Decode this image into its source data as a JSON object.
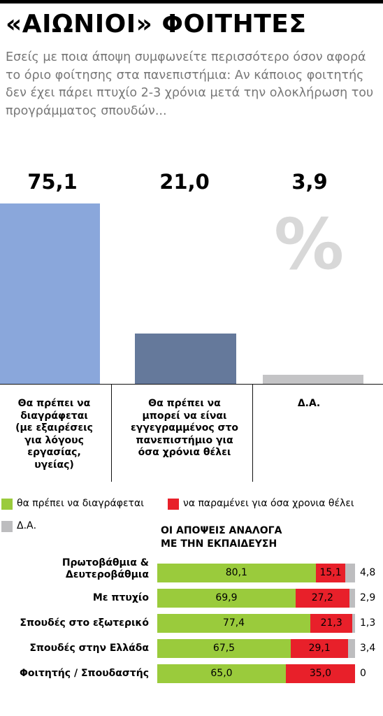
{
  "title": "«ΑΙΩΝΙΟΙ» ΦΟΙΤΗΤΕΣ",
  "subtitle": "Εσείς με ποια άποψη συμφωνείτε περισσότερο όσον αφορά το όριο φοίτησης στα πανεπιστήμια: Αν κάποιος φοιτητής δεν έχει πάρει πτυχίο 2-3 χρόνια μετά την ολοκλήρωση του προγράμματος σπουδών...",
  "percent_mark": "%",
  "colors": {
    "bar1": "#8aa7db",
    "bar2": "#65799b",
    "bar3": "#c4c4c6",
    "green": "#9acb3c",
    "red": "#e8202a",
    "gray": "#bdbdbf"
  },
  "legend": {
    "green": "θα πρέπει να διαγράφεται",
    "red": "να παραμένει για όσα χρονια θέλει",
    "gray": "Δ.Α."
  },
  "chart_data": [
    {
      "type": "bar",
      "categories": [
        "Θα πρέπει να διαγράφεται (με εξαιρέσεις για λόγους εργασίας, υγείας)",
        "Θα πρέπει να μπορεί να είναι εγγεγραμμένος στο πανεπιστήμιο για όσα χρόνια θέλει",
        "Δ.Α."
      ],
      "category_lines": [
        [
          "Θα πρέπει να",
          "διαγράφεται",
          "(με εξαιρέσεις",
          "για λόγους",
          "εργασίας,",
          "υγείας)"
        ],
        [
          "Θα πρέπει να",
          "μπορεί να είναι",
          "εγγεγραμμένος στο",
          "πανεπιστήμιο για",
          "όσα χρόνια θέλει"
        ],
        [
          "Δ.Α."
        ]
      ],
      "values": [
        75.1,
        21.0,
        3.9
      ],
      "value_labels": [
        "75,1",
        "21,0",
        "3,9"
      ],
      "unit": "%",
      "ylim": [
        0,
        75.1
      ]
    },
    {
      "type": "bar",
      "orientation": "horizontal",
      "stacked": true,
      "title": "ΟΙ ΑΠΟΨΕΙΣ ΑΝΑΛΟΓΑ ΜΕ ΤΗΝ ΕΚΠΑΙΔΕΥΣΗ",
      "title_lines": [
        "ΟΙ ΑΠΟΨΕΙΣ ΑΝΑΛΟΓΑ",
        "ΜΕ ΤΗΝ ΕΚΠΑΙΔΕΥΣΗ"
      ],
      "categories": [
        "Πρωτοβάθμια & Δευτεροβάθμια",
        "Με πτυχίο",
        "Σπουδές στο εξωτερικό",
        "Σπουδές στην Ελλάδα",
        "Φοιτητής / Σπουδαστής"
      ],
      "category_lines": [
        [
          "Πρωτοβάθμια &",
          "Δευτεροβάθμια"
        ],
        [
          "Με πτυχίο"
        ],
        [
          "Σπουδές στο εξωτερικό"
        ],
        [
          "Σπουδές στην Ελλάδα"
        ],
        [
          "Φοιτητής / Σπουδαστής"
        ]
      ],
      "series": [
        {
          "name": "θα πρέπει να διαγράφεται",
          "values": [
            80.1,
            69.9,
            77.4,
            67.5,
            65.0
          ],
          "labels": [
            "80,1",
            "69,9",
            "77,4",
            "67,5",
            "65,0"
          ]
        },
        {
          "name": "να παραμένει για όσα χρονια θέλει",
          "values": [
            15.1,
            27.2,
            21.3,
            29.1,
            35.0
          ],
          "labels": [
            "15,1",
            "27,2",
            "21,3",
            "29,1",
            "35,0"
          ]
        },
        {
          "name": "Δ.Α.",
          "values": [
            4.8,
            2.9,
            1.3,
            3.4,
            0
          ],
          "labels": [
            "4,8",
            "2,9",
            "1,3",
            "3,4",
            "0"
          ]
        }
      ],
      "xlim": [
        0,
        100
      ]
    }
  ]
}
